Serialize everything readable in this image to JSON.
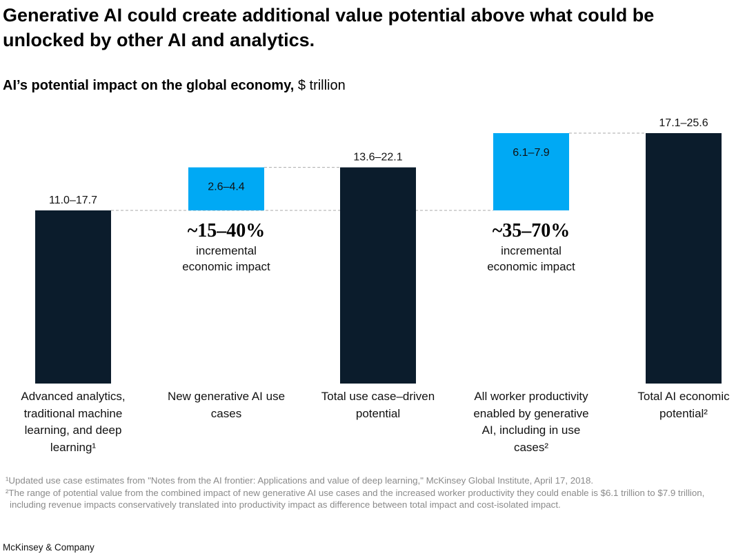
{
  "header": {
    "title": "Generative AI could create additional value potential above what could be unlocked by other AI and analytics."
  },
  "chart_data": {
    "type": "waterfall",
    "title": "AI’s potential impact on the global economy,",
    "unit": "$ trillion",
    "categories": [
      "Advanced analytics, traditional machine learning, and deep learning¹",
      "New generative AI use cases",
      "Total use case–driven potential",
      "All worker productivity enabled by generative AI, including in use cases²",
      "Total AI economic potential²"
    ],
    "measure": [
      "absolute",
      "relative",
      "absolute",
      "relative",
      "absolute"
    ],
    "low": [
      11.0,
      2.6,
      13.6,
      6.1,
      17.1
    ],
    "high": [
      17.7,
      4.4,
      22.1,
      7.9,
      25.6
    ],
    "value_labels": [
      "11.0–17.7",
      "2.6–4.4",
      "13.6–22.1",
      "6.1–7.9",
      "17.1–25.6"
    ],
    "colors": {
      "absolute": "#0b1c2c",
      "relative": "#00a9f4"
    },
    "annotations": [
      null,
      {
        "text": "~15–40%",
        "subtext": "incremental economic impact"
      },
      null,
      {
        "text": "~35–70%",
        "subtext": "incremental economic impact"
      },
      null
    ]
  },
  "footnotes": [
    "¹Updated use case estimates from \"Notes from the AI frontier: Applications and value of deep learning,\" McKinsey Global Institute, April 17, 2018.",
    "²The range of potential value from the combined impact of new generative AI use cases and the increased worker productivity they could enable is $6.1 trillion to $7.9 trillion, including revenue impacts conservatively translated into productivity impact as difference between total impact and cost-isolated impact."
  ],
  "source": "McKinsey & Company"
}
